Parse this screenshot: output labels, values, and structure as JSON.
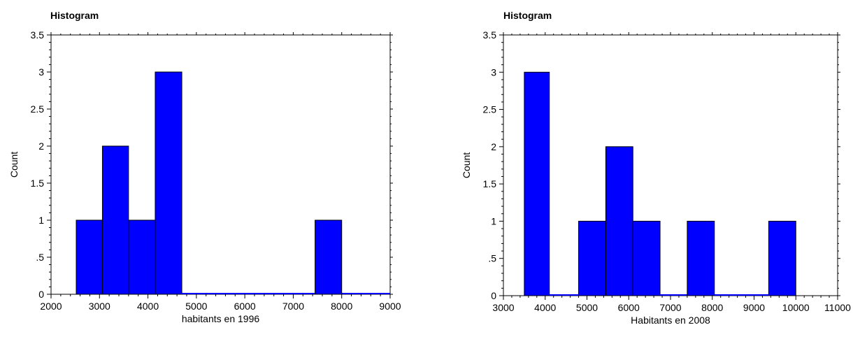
{
  "chart_data": [
    {
      "type": "bar",
      "title": "Histogram",
      "xlabel": "habitants en 1996",
      "ylabel": "Count",
      "xlim": [
        2000,
        9000
      ],
      "ylim": [
        0,
        3.5
      ],
      "x_ticks": [
        2000,
        3000,
        4000,
        5000,
        6000,
        7000,
        8000,
        9000
      ],
      "y_ticks": [
        0,
        0.5,
        1,
        1.5,
        2,
        2.5,
        3,
        3.5
      ],
      "y_tick_labels": [
        "0",
        ".5",
        "1",
        "1.5",
        "2",
        "2.5",
        "3",
        "3.5"
      ],
      "bins": [
        {
          "start": 2520,
          "end": 3060,
          "count": 1
        },
        {
          "start": 3060,
          "end": 3600,
          "count": 2
        },
        {
          "start": 3600,
          "end": 4150,
          "count": 1
        },
        {
          "start": 4150,
          "end": 4700,
          "count": 3
        },
        {
          "start": 4700,
          "end": 5250,
          "count": 0
        },
        {
          "start": 5250,
          "end": 5800,
          "count": 0
        },
        {
          "start": 5800,
          "end": 6350,
          "count": 0
        },
        {
          "start": 6350,
          "end": 6900,
          "count": 0
        },
        {
          "start": 6900,
          "end": 7450,
          "count": 0
        },
        {
          "start": 7450,
          "end": 8000,
          "count": 1
        },
        {
          "start": 8000,
          "end": 9000,
          "count": 0
        }
      ],
      "bar_color": "#0000ff",
      "grid": false
    },
    {
      "type": "bar",
      "title": "Histogram",
      "xlabel": "Habitants en 2008",
      "ylabel": "Count",
      "xlim": [
        3000,
        11000
      ],
      "ylim": [
        0,
        3.5
      ],
      "x_ticks": [
        3000,
        4000,
        5000,
        6000,
        7000,
        8000,
        9000,
        10000,
        11000
      ],
      "y_ticks": [
        0,
        0.5,
        1,
        1.5,
        2,
        2.5,
        3,
        3.5
      ],
      "y_tick_labels": [
        "0",
        ".5",
        "1",
        "1.5",
        "2",
        "2.5",
        "3",
        "3.5"
      ],
      "bins": [
        {
          "start": 3500,
          "end": 4100,
          "count": 3
        },
        {
          "start": 4100,
          "end": 4800,
          "count": 0
        },
        {
          "start": 4800,
          "end": 5450,
          "count": 1
        },
        {
          "start": 5450,
          "end": 6100,
          "count": 2
        },
        {
          "start": 6100,
          "end": 6750,
          "count": 1
        },
        {
          "start": 6750,
          "end": 7400,
          "count": 0
        },
        {
          "start": 7400,
          "end": 8050,
          "count": 1
        },
        {
          "start": 8050,
          "end": 9350,
          "count": 0
        },
        {
          "start": 9350,
          "end": 10000,
          "count": 1
        }
      ],
      "bar_color": "#0000ff",
      "grid": false
    }
  ]
}
